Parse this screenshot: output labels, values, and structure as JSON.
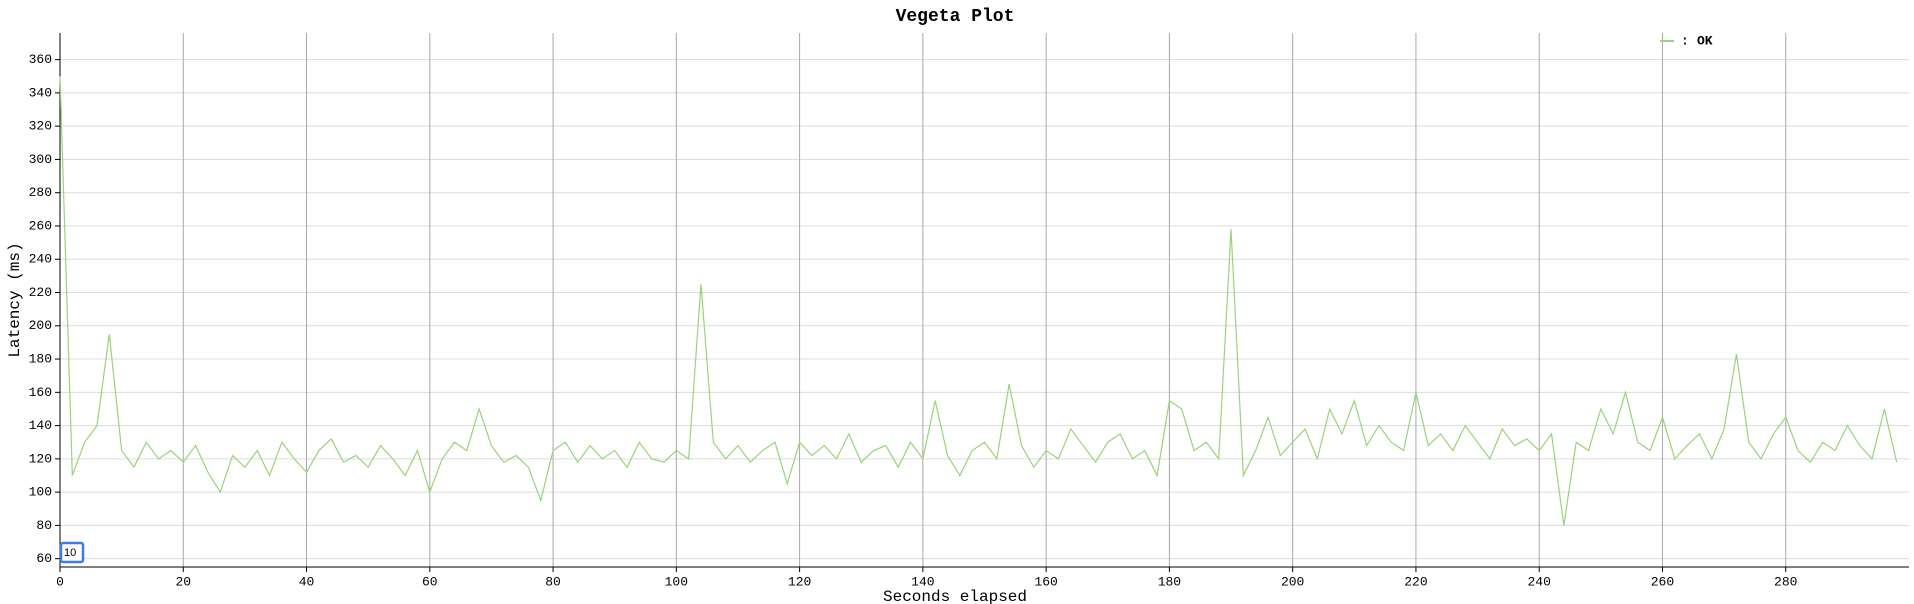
{
  "chart_data": {
    "type": "line",
    "title": "Vegeta Plot",
    "x_label": "Seconds elapsed",
    "y_label": "Latency (ms)",
    "x": [
      0,
      2,
      4,
      6,
      8,
      10,
      12,
      14,
      16,
      18,
      20,
      22,
      24,
      26,
      28,
      30,
      32,
      34,
      36,
      38,
      40,
      42,
      44,
      46,
      48,
      50,
      52,
      54,
      56,
      58,
      60,
      62,
      64,
      66,
      68,
      70,
      72,
      74,
      76,
      78,
      80,
      82,
      84,
      86,
      88,
      90,
      92,
      94,
      96,
      98,
      100,
      102,
      104,
      106,
      108,
      110,
      112,
      114,
      116,
      118,
      120,
      122,
      124,
      126,
      128,
      130,
      132,
      134,
      136,
      138,
      140,
      142,
      144,
      146,
      148,
      150,
      152,
      154,
      156,
      158,
      160,
      162,
      164,
      166,
      168,
      170,
      172,
      174,
      176,
      178,
      180,
      182,
      184,
      186,
      188,
      190,
      192,
      194,
      196,
      198,
      200,
      202,
      204,
      206,
      208,
      210,
      212,
      214,
      216,
      218,
      220,
      222,
      224,
      226,
      228,
      230,
      232,
      234,
      236,
      238,
      240,
      242,
      244,
      246,
      248,
      250,
      252,
      254,
      256,
      258,
      260,
      262,
      264,
      266,
      268,
      270,
      272,
      274,
      276,
      278,
      280,
      282,
      284,
      286,
      288,
      290,
      292,
      294,
      296,
      298
    ],
    "series": [
      {
        "name": "OK",
        "color": "#98d47a",
        "values": [
          350,
          110,
          130,
          140,
          195,
          125,
          115,
          130,
          120,
          125,
          118,
          128,
          112,
          100,
          122,
          115,
          125,
          110,
          130,
          120,
          112,
          125,
          132,
          118,
          122,
          115,
          128,
          120,
          110,
          125,
          100,
          120,
          130,
          125,
          150,
          128,
          118,
          122,
          115,
          95,
          125,
          130,
          118,
          128,
          120,
          125,
          115,
          130,
          120,
          118,
          125,
          120,
          225,
          130,
          120,
          128,
          118,
          125,
          130,
          105,
          130,
          122,
          128,
          120,
          135,
          118,
          125,
          128,
          115,
          130,
          120,
          155,
          122,
          110,
          125,
          130,
          120,
          165,
          128,
          115,
          125,
          120,
          138,
          128,
          118,
          130,
          135,
          120,
          125,
          110,
          155,
          150,
          125,
          130,
          120,
          258,
          110,
          125,
          145,
          122,
          130,
          138,
          120,
          150,
          135,
          155,
          128,
          140,
          130,
          125,
          160,
          128,
          135,
          125,
          140,
          130,
          120,
          138,
          128,
          132,
          125,
          135,
          80,
          130,
          125,
          150,
          135,
          160,
          130,
          125,
          145,
          120,
          128,
          135,
          120,
          138,
          183,
          130,
          120,
          135,
          145,
          125,
          118,
          130,
          125,
          140,
          128,
          120,
          150,
          118
        ]
      }
    ],
    "legend_separator": ":",
    "xlim": [
      0,
      300
    ],
    "xticks": [
      0,
      20,
      40,
      60,
      80,
      100,
      120,
      140,
      160,
      180,
      200,
      220,
      240,
      260,
      280
    ],
    "ylim": [
      55,
      376
    ],
    "yticks": [
      60,
      80,
      100,
      120,
      140,
      160,
      180,
      200,
      220,
      240,
      260,
      280,
      300,
      320,
      340,
      360
    ],
    "grid": true,
    "roll_period": "10"
  }
}
